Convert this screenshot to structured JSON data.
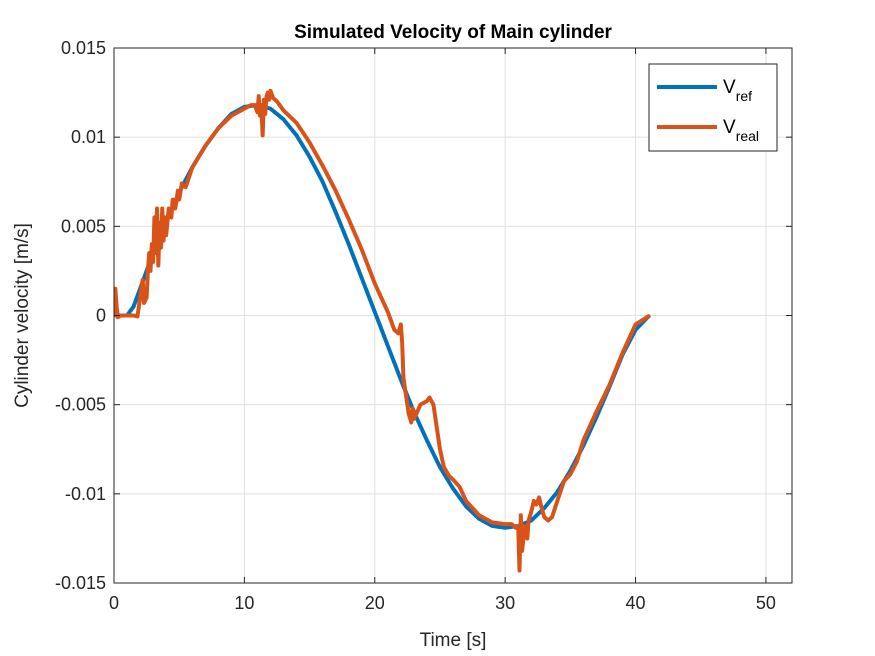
{
  "chart_data": {
    "type": "line",
    "title": "Simulated Velocity of Main cylinder",
    "xlabel": "Time [s]",
    "ylabel": "Cylinder velocity [m/s]",
    "xlim": [
      0,
      52
    ],
    "ylim": [
      -0.015,
      0.015
    ],
    "x_ticks": [
      0,
      10,
      20,
      30,
      40,
      50
    ],
    "x_tick_labels": [
      "0",
      "10",
      "20",
      "30",
      "40",
      "50"
    ],
    "y_ticks": [
      -0.015,
      -0.01,
      -0.005,
      0,
      0.005,
      0.01,
      0.015
    ],
    "y_tick_labels": [
      "-0.015",
      "-0.01",
      "-0.005",
      "0",
      "0.005",
      "0.01",
      "0.015"
    ],
    "grid": true,
    "legend_position": "top-right",
    "series": [
      {
        "name": "V_ref",
        "legend_main": "V",
        "legend_sub": "ref",
        "color": "#0072BD",
        "x": [
          0,
          1,
          1.5,
          2,
          3,
          4,
          5,
          6,
          7,
          8,
          9,
          10,
          11,
          12,
          13,
          14,
          15,
          16,
          17,
          18,
          19,
          20,
          21,
          22,
          23,
          24,
          25,
          26,
          27,
          28,
          29,
          30,
          31,
          32,
          33,
          34,
          35,
          36,
          37,
          38,
          39,
          40,
          41
        ],
        "y": [
          0,
          0,
          0.0005,
          0.0015,
          0.0035,
          0.0053,
          0.0069,
          0.0083,
          0.0095,
          0.0105,
          0.0113,
          0.0117,
          0.0118,
          0.0116,
          0.011,
          0.0101,
          0.0089,
          0.0075,
          0.0058,
          0.004,
          0.0021,
          0.0002,
          -0.0017,
          -0.0036,
          -0.0054,
          -0.007,
          -0.0085,
          -0.0097,
          -0.0107,
          -0.0114,
          -0.0118,
          -0.0119,
          -0.0118,
          -0.0115,
          -0.0108,
          -0.0099,
          -0.0087,
          -0.0073,
          -0.0057,
          -0.004,
          -0.0022,
          -0.0008,
          -5e-05
        ]
      },
      {
        "name": "V_real",
        "legend_main": "V",
        "legend_sub": "real",
        "color": "#D95319",
        "x": [
          0,
          0.1,
          0.2,
          0.3,
          0.5,
          1,
          1.5,
          1.8,
          2,
          2.1,
          2.2,
          2.3,
          2.5,
          2.6,
          2.7,
          2.8,
          2.9,
          3,
          3.1,
          3.2,
          3.3,
          3.4,
          3.5,
          3.6,
          3.7,
          3.8,
          3.9,
          4,
          4.2,
          4.4,
          4.5,
          4.7,
          4.9,
          5,
          5.2,
          5.5,
          6,
          7,
          8,
          9,
          10,
          10.5,
          10.8,
          11,
          11.1,
          11.2,
          11.3,
          11.4,
          11.5,
          11.6,
          11.7,
          11.8,
          11.9,
          12,
          12.2,
          12.5,
          12.8,
          13,
          14,
          15,
          16,
          17,
          18,
          19,
          20,
          21,
          21.5,
          21.8,
          22,
          22.1,
          22.2,
          22.4,
          22.6,
          22.8,
          22.9,
          23.0,
          23.2,
          23.5,
          24,
          24.2,
          24.5,
          24.8,
          25,
          25.3,
          25.7,
          26,
          26.5,
          27,
          28,
          29,
          30,
          30.5,
          30.8,
          31,
          31.1,
          31.2,
          31.3,
          31.5,
          31.7,
          31.8,
          32,
          32.2,
          32.4,
          32.6,
          32.8,
          33,
          33.3,
          33.6,
          34,
          34.5,
          35,
          35.5,
          36,
          37,
          38,
          39,
          40,
          41
        ],
        "y": [
          0,
          0.0015,
          0.0005,
          -0.0001,
          0,
          0,
          0,
          -5e-05,
          0.001,
          0.0015,
          0.002,
          0.0007,
          0.001,
          0.0025,
          0.0035,
          0.0025,
          0.004,
          0.003,
          0.0055,
          0.0035,
          0.006,
          0.0028,
          0.0052,
          0.0038,
          0.006,
          0.0042,
          0.0055,
          0.0045,
          0.006,
          0.0055,
          0.0065,
          0.006,
          0.007,
          0.0065,
          0.0074,
          0.0072,
          0.0083,
          0.0095,
          0.0105,
          0.0112,
          0.0116,
          0.0118,
          0.0118,
          0.0114,
          0.0123,
          0.0112,
          0.0118,
          0.0101,
          0.0121,
          0.0113,
          0.0123,
          0.0125,
          0.0121,
          0.0126,
          0.0122,
          0.012,
          0.0117,
          0.0115,
          0.0108,
          0.0097,
          0.0084,
          0.007,
          0.0054,
          0.0037,
          0.0018,
          0.0002,
          -0.0008,
          -0.001,
          -0.0005,
          -0.0015,
          -0.0035,
          -0.0045,
          -0.0055,
          -0.006,
          -0.0052,
          -0.0058,
          -0.0055,
          -0.005,
          -0.0048,
          -0.0046,
          -0.005,
          -0.0065,
          -0.0075,
          -0.0085,
          -0.009,
          -0.0092,
          -0.0096,
          -0.0104,
          -0.0112,
          -0.0116,
          -0.0117,
          -0.0117,
          -0.0119,
          -0.0118,
          -0.0143,
          -0.0112,
          -0.0132,
          -0.0118,
          -0.0125,
          -0.0115,
          -0.011,
          -0.0104,
          -0.0106,
          -0.0102,
          -0.0108,
          -0.0113,
          -0.0115,
          -0.0113,
          -0.0104,
          -0.0093,
          -0.0089,
          -0.0082,
          -0.007,
          -0.0054,
          -0.0039,
          -0.0021,
          -0.0005,
          -5e-05
        ]
      }
    ]
  }
}
